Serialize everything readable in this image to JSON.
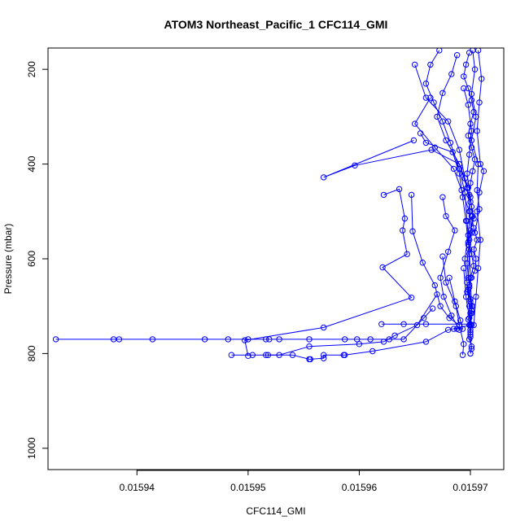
{
  "chart_data": {
    "type": "line",
    "title": "ATOM3 Northeast_Pacific_1 CFC114_GMI",
    "xlabel": "CFC114_GMI",
    "ylabel": "Pressure (mbar)",
    "xlim": [
      0.015932,
      0.015973
    ],
    "ylim": [
      1045,
      155
    ],
    "y_inverted": true,
    "grid": false,
    "legend": "none",
    "marker": "open-circle",
    "color": "#0000ff",
    "x_ticks": [
      {
        "value": 0.01594,
        "label": "0.01594"
      },
      {
        "value": 0.01595,
        "label": "0.01595"
      },
      {
        "value": 0.01596,
        "label": "0.01596"
      },
      {
        "value": 0.01597,
        "label": "0.01597"
      }
    ],
    "y_ticks": [
      {
        "value": 200,
        "label": "200"
      },
      {
        "value": 400,
        "label": "400"
      },
      {
        "value": 600,
        "label": "600"
      },
      {
        "value": 800,
        "label": "800"
      },
      {
        "value": 1000,
        "label": "1000"
      }
    ],
    "series": [
      {
        "points": [
          [
            0.0159699,
            165
          ],
          [
            0.0159696,
            190
          ],
          [
            0.0159694,
            215
          ],
          [
            0.0159698,
            240
          ],
          [
            0.0159701,
            265
          ],
          [
            0.0159703,
            290
          ],
          [
            0.01597,
            315
          ],
          [
            0.0159698,
            340
          ],
          [
            0.0159701,
            365
          ],
          [
            0.0159704,
            390
          ],
          [
            0.0159702,
            415
          ],
          [
            0.01597,
            440
          ],
          [
            0.0159699,
            465
          ],
          [
            0.0159701,
            490
          ],
          [
            0.0159703,
            515
          ],
          [
            0.01597,
            540
          ],
          [
            0.0159698,
            565
          ],
          [
            0.0159701,
            590
          ],
          [
            0.0159703,
            615
          ],
          [
            0.01597,
            640
          ],
          [
            0.0159698,
            665
          ],
          [
            0.01597,
            690
          ],
          [
            0.0159701,
            715
          ],
          [
            0.0159699,
            740
          ],
          [
            0.01597,
            765
          ],
          [
            0.0159701,
            790
          ],
          [
            0.01597,
            800
          ]
        ]
      },
      {
        "points": [
          [
            0.0159688,
            170
          ],
          [
            0.0159683,
            210
          ],
          [
            0.0159675,
            250
          ],
          [
            0.015967,
            300
          ],
          [
            0.0159678,
            350
          ],
          [
            0.015969,
            400
          ],
          [
            0.0159697,
            450
          ],
          [
            0.01597,
            500
          ],
          [
            0.0159698,
            550
          ],
          [
            0.0159695,
            600
          ],
          [
            0.0159697,
            650
          ],
          [
            0.0159699,
            700
          ],
          [
            0.01597,
            740
          ]
        ]
      },
      {
        "points": [
          [
            0.0159672,
            160
          ],
          [
            0.0159664,
            190
          ],
          [
            0.015966,
            230
          ],
          [
            0.0159667,
            270
          ],
          [
            0.0159675,
            310
          ],
          [
            0.0159682,
            355
          ],
          [
            0.015969,
            410
          ],
          [
            0.0159695,
            460
          ],
          [
            0.0159697,
            520
          ],
          [
            0.0159699,
            580
          ],
          [
            0.01597,
            640
          ],
          [
            0.0159701,
            700
          ],
          [
            0.01597,
            750
          ]
        ]
      },
      {
        "points": [
          [
            0.0159707,
            160
          ],
          [
            0.015971,
            220
          ],
          [
            0.0159708,
            270
          ],
          [
            0.0159706,
            330
          ],
          [
            0.0159709,
            400
          ],
          [
            0.0159712,
            415
          ],
          [
            0.0159708,
            460
          ],
          [
            0.0159706,
            500
          ],
          [
            0.0159709,
            560
          ],
          [
            0.0159707,
            620
          ],
          [
            0.0159705,
            680
          ],
          [
            0.0159703,
            740
          ]
        ]
      },
      {
        "points": [
          [
            0.015965,
            190
          ],
          [
            0.015966,
            260
          ],
          [
            0.015968,
            310
          ],
          [
            0.015969,
            370
          ],
          [
            0.0159695,
            430
          ],
          [
            0.01597,
            480
          ]
        ]
      },
      {
        "points": [
          [
            0.0159694,
            240
          ],
          [
            0.0159698,
            275
          ],
          [
            0.0159701,
            330
          ],
          [
            0.0159699,
            380
          ],
          [
            0.0159697,
            420
          ],
          [
            0.01597,
            470
          ],
          [
            0.0159702,
            510
          ],
          [
            0.0159699,
            560
          ],
          [
            0.0159697,
            610
          ],
          [
            0.0159699,
            660
          ],
          [
            0.0159701,
            710
          ],
          [
            0.01597,
            760
          ]
        ]
      },
      {
        "points": [
          [
            0.0159664,
            260
          ],
          [
            0.015965,
            315
          ],
          [
            0.0159668,
            365
          ],
          [
            0.0159685,
            410
          ],
          [
            0.0159692,
            455
          ],
          [
            0.0159699,
            500
          ],
          [
            0.0159701,
            545
          ],
          [
            0.0159699,
            590
          ],
          [
            0.0159698,
            640
          ]
        ]
      },
      {
        "points": [
          [
            0.0159655,
            335
          ],
          [
            0.015966,
            355
          ],
          [
            0.0159684,
            375
          ],
          [
            0.015969,
            420
          ],
          [
            0.0159693,
            470
          ],
          [
            0.0159696,
            520
          ],
          [
            0.0159698,
            570
          ]
        ]
      },
      {
        "points": [
          [
            0.0159649,
            350
          ],
          [
            0.0159568,
            428
          ],
          [
            0.0159596,
            403
          ],
          [
            0.0159665,
            370
          ],
          [
            0.015969,
            400
          ],
          [
            0.0159698,
            450
          ]
        ]
      },
      {
        "points": [
          [
            0.0159622,
            465
          ],
          [
            0.0159636,
            453
          ],
          [
            0.0159641,
            515
          ],
          [
            0.0159639,
            540
          ],
          [
            0.0159643,
            590
          ],
          [
            0.0159621,
            618
          ],
          [
            0.0159647,
            682
          ],
          [
            0.0159568,
            745
          ],
          [
            0.0159497,
            772
          ],
          [
            0.01595,
            805
          ]
        ]
      },
      {
        "points": [
          [
            0.0159647,
            465
          ],
          [
            0.0159648,
            542
          ],
          [
            0.0159657,
            608
          ],
          [
            0.0159668,
            656
          ],
          [
            0.0159673,
            700
          ],
          [
            0.0159681,
            725
          ],
          [
            0.015969,
            740
          ]
        ]
      },
      {
        "points": [
          [
            0.0159675,
            470
          ],
          [
            0.0159678,
            510
          ],
          [
            0.0159686,
            540
          ],
          [
            0.015968,
            585
          ],
          [
            0.0159673,
            640
          ],
          [
            0.0159676,
            680
          ],
          [
            0.0159683,
            720
          ],
          [
            0.015969,
            750
          ]
        ]
      },
      {
        "points": [
          [
            0.0159675,
            595
          ],
          [
            0.0159678,
            650
          ],
          [
            0.0159687,
            700
          ],
          [
            0.015969,
            740
          ],
          [
            0.0159694,
            780
          ],
          [
            0.0159693,
            803
          ]
        ]
      },
      {
        "points": [
          [
            0.0159666,
            705
          ],
          [
            0.0159658,
            725
          ],
          [
            0.015964,
            770
          ],
          [
            0.0159627,
            770
          ],
          [
            0.015961,
            770
          ],
          [
            0.0159598,
            770
          ],
          [
            0.0159587,
            770
          ],
          [
            0.0159555,
            770
          ],
          [
            0.0159528,
            770
          ],
          [
            0.0159519,
            770
          ],
          [
            0.0159516,
            770
          ],
          [
            0.01595,
            770
          ],
          [
            0.0159482,
            770
          ],
          [
            0.0159461,
            770
          ],
          [
            0.0159414,
            770
          ],
          [
            0.0159384,
            770
          ],
          [
            0.0159379,
            770
          ],
          [
            0.0159327,
            770
          ]
        ]
      },
      {
        "points": [
          [
            0.015967,
            675
          ],
          [
            0.0159652,
            740
          ],
          [
            0.0159632,
            762
          ],
          [
            0.0159622,
            775
          ],
          [
            0.01596,
            780
          ],
          [
            0.0159555,
            785
          ],
          [
            0.0159528,
            803
          ],
          [
            0.0159516,
            803
          ],
          [
            0.0159504,
            803
          ],
          [
            0.0159485,
            803
          ]
        ]
      },
      {
        "points": [
          [
            0.01597,
            740
          ],
          [
            0.015968,
            750
          ],
          [
            0.015966,
            775
          ],
          [
            0.0159612,
            795
          ],
          [
            0.0159587,
            803
          ],
          [
            0.0159586,
            803
          ],
          [
            0.0159568,
            803
          ],
          [
            0.0159568,
            810
          ],
          [
            0.0159556,
            812
          ],
          [
            0.0159555,
            812
          ],
          [
            0.015954,
            803
          ],
          [
            0.0159518,
            803
          ]
        ]
      },
      {
        "points": [
          [
            0.0159694,
            620
          ],
          [
            0.0159696,
            680
          ],
          [
            0.0159699,
            725
          ],
          [
            0.01597,
            738
          ],
          [
            0.015966,
            738
          ],
          [
            0.015964,
            738
          ],
          [
            0.015962,
            738
          ]
        ]
      },
      {
        "points": [
          [
            0.0159681,
            640
          ],
          [
            0.0159686,
            690
          ],
          [
            0.0159691,
            730
          ],
          [
            0.0159693,
            748
          ],
          [
            0.0159688,
            748
          ],
          [
            0.0159685,
            748
          ]
        ]
      },
      {
        "points": [
          [
            0.0159704,
            545
          ],
          [
            0.0159708,
            495
          ],
          [
            0.0159706,
            455
          ],
          [
            0.0159707,
            400
          ],
          [
            0.0159701,
            350
          ],
          [
            0.0159705,
            300
          ],
          [
            0.0159701,
            252
          ],
          [
            0.0159704,
            200
          ],
          [
            0.0159702,
            160
          ]
        ]
      },
      {
        "points": [
          [
            0.01597,
            800
          ],
          [
            0.0159701,
            785
          ],
          [
            0.0159699,
            770
          ],
          [
            0.01597,
            755
          ],
          [
            0.0159701,
            740
          ],
          [
            0.0159698,
            728
          ],
          [
            0.01597,
            715
          ],
          [
            0.0159702,
            700
          ],
          [
            0.01597,
            685
          ],
          [
            0.0159697,
            670
          ],
          [
            0.0159699,
            655
          ],
          [
            0.0159701,
            640
          ],
          [
            0.0159704,
            625
          ],
          [
            0.0159705,
            600
          ],
          [
            0.0159703,
            580
          ],
          [
            0.0159706,
            560
          ],
          [
            0.0159703,
            535
          ],
          [
            0.0159701,
            510
          ]
        ]
      }
    ]
  }
}
